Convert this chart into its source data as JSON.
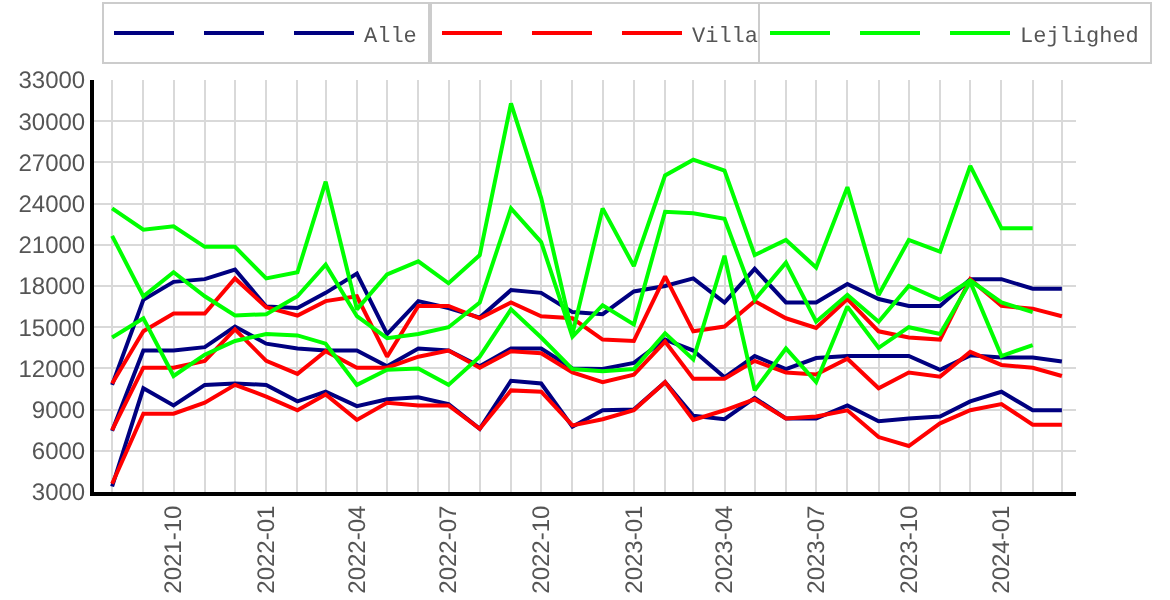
{
  "chart_data": {
    "type": "line",
    "x": [
      "2021-08",
      "2021-09",
      "2021-10",
      "2021-11",
      "2021-12",
      "2022-01",
      "2022-02",
      "2022-03",
      "2022-04",
      "2022-05",
      "2022-06",
      "2022-07",
      "2022-08",
      "2022-09",
      "2022-10",
      "2022-11",
      "2022-12",
      "2023-01",
      "2023-02",
      "2023-03",
      "2023-04",
      "2023-05",
      "2023-06",
      "2023-07",
      "2023-08",
      "2023-09",
      "2023-10",
      "2023-11",
      "2023-12",
      "2024-01",
      "2024-02",
      "2024-03"
    ],
    "series": [
      {
        "color": "#000080",
        "values": [
          10800,
          17000,
          18300,
          18500,
          19200,
          16500,
          16400,
          17500,
          18900,
          14500,
          16900,
          16400,
          15700,
          17700,
          17500,
          16100,
          15950,
          17600,
          18000,
          18550,
          16800,
          19250,
          16800,
          16800,
          18150,
          17050,
          16550,
          16550,
          18500,
          18500,
          17800,
          17800
        ]
      },
      {
        "color": "#000080",
        "values": [
          7450,
          13300,
          13300,
          13550,
          15050,
          13800,
          13450,
          13300,
          13300,
          12150,
          13450,
          13300,
          12150,
          13450,
          13450,
          12000,
          11950,
          12400,
          14100,
          13300,
          11350,
          12900,
          11950,
          12750,
          12900,
          12900,
          12900,
          11900,
          12950,
          12800,
          12800,
          12500
        ]
      },
      {
        "name": "Alle",
        "color": "#000080",
        "values": [
          3400,
          10550,
          9300,
          10800,
          10900,
          10800,
          9600,
          10300,
          9250,
          9750,
          9900,
          9400,
          7600,
          11100,
          10900,
          7750,
          8950,
          9000,
          11000,
          8550,
          8300,
          9850,
          8350,
          8350,
          9300,
          8150,
          8350,
          8500,
          9600,
          10300,
          8950,
          8950
        ]
      },
      {
        "color": "#ff0000",
        "values": [
          10900,
          14700,
          16000,
          16000,
          18550,
          16450,
          15850,
          16900,
          17250,
          12850,
          16550,
          16550,
          15650,
          16800,
          15800,
          15650,
          14100,
          14000,
          18700,
          14700,
          15050,
          16900,
          15650,
          14950,
          17050,
          14700,
          14250,
          14100,
          18500,
          16550,
          16350,
          15800
        ]
      },
      {
        "color": "#ff0000",
        "values": [
          7500,
          12050,
          12050,
          12550,
          14850,
          12550,
          11600,
          13250,
          12050,
          12050,
          12850,
          13300,
          12050,
          13250,
          13100,
          11700,
          11000,
          11550,
          13950,
          11250,
          11250,
          12550,
          11700,
          11550,
          12700,
          10550,
          11700,
          11400,
          13200,
          12250,
          12050,
          11450
        ]
      },
      {
        "name": "Villa",
        "color": "#ff0000",
        "values": [
          3600,
          8700,
          8700,
          9500,
          10800,
          9950,
          8950,
          10100,
          8250,
          9500,
          9300,
          9300,
          7600,
          10400,
          10300,
          7850,
          8300,
          8950,
          11000,
          8250,
          8950,
          9750,
          8350,
          8500,
          8950,
          7000,
          6350,
          8000,
          8950,
          9400,
          7900,
          7900
        ]
      },
      {
        "color": "#00ff00",
        "values": [
          23650,
          22100,
          22350,
          20850,
          20850,
          18550,
          19000,
          25600,
          16300,
          18850,
          19800,
          18200,
          20250,
          31300,
          24400,
          14500,
          23650,
          19450,
          26050,
          27200,
          26400,
          20250,
          21350,
          19350,
          25200,
          17350,
          21350,
          20500,
          26750,
          22200,
          22200,
          null
        ]
      },
      {
        "color": "#00ff00",
        "values": [
          21650,
          17250,
          19000,
          17250,
          15850,
          15950,
          17250,
          19550,
          15800,
          14200,
          14500,
          15000,
          16800,
          23650,
          21200,
          14300,
          16600,
          15200,
          23400,
          23300,
          22900,
          17000,
          19700,
          15400,
          17350,
          15400,
          18000,
          17000,
          18400,
          16800,
          16100,
          null
        ]
      },
      {
        "name": "Lejlighed",
        "color": "#00ff00",
        "values": [
          14250,
          15650,
          11450,
          13000,
          14000,
          14500,
          14400,
          13800,
          10800,
          11900,
          12000,
          10800,
          12850,
          16300,
          14250,
          11950,
          11800,
          11950,
          14550,
          12650,
          20200,
          10400,
          13450,
          11000,
          16500,
          13500,
          15000,
          14500,
          18300,
          12900,
          13700,
          null
        ]
      }
    ],
    "xlim": [
      "2021-07-14",
      "2024-03-15"
    ],
    "xticks": [
      "2021-10",
      "2022-01",
      "2022-04",
      "2022-07",
      "2022-10",
      "2023-01",
      "2023-04",
      "2023-07",
      "2023-10",
      "2024-01"
    ],
    "ylim": [
      3000,
      33000
    ],
    "yticks": [
      3000,
      6000,
      9000,
      12000,
      15000,
      18000,
      21000,
      24000,
      27000,
      30000,
      33000
    ],
    "grid": true,
    "legend": "top right",
    "marker": "none",
    "line_style": "solid"
  }
}
